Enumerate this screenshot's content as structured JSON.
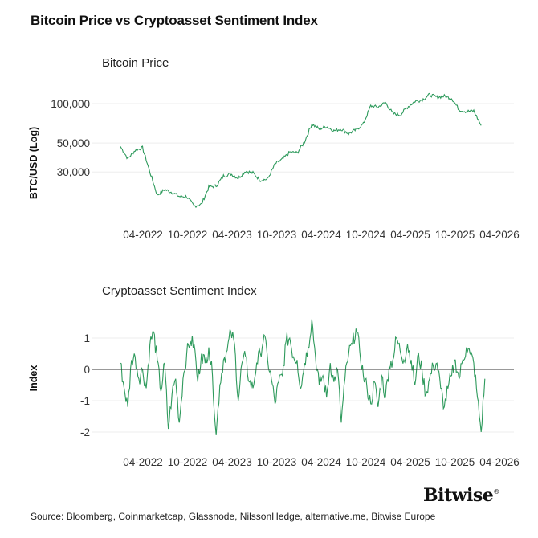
{
  "title": "Bitcoin Price vs Cryptoasset Sentiment Index",
  "source": "Source: Bloomberg, Coinmarketcap, Glassnode, NilssonHedge, alternative.me, Bitwise Europe",
  "logo": "Bitwise",
  "colors": {
    "line": "#2e9a5c",
    "zero_line": "#333333",
    "grid": "#eeeeee"
  },
  "chart_data": [
    {
      "type": "line",
      "title": "Bitcoin Price",
      "ylabel": "BTC/USD (Log)",
      "yscale": "log",
      "ylim": [
        14000,
        130000
      ],
      "yticks": [
        100000,
        50000,
        30000
      ],
      "ytick_labels": [
        "100,000",
        "50,000",
        "30,000"
      ],
      "xtick_labels": [
        "04-2022",
        "10-2022",
        "04-2023",
        "10-2023",
        "04-2024",
        "10-2024",
        "04-2025",
        "10-2025",
        "04-2026"
      ],
      "grid": true,
      "points": [
        [
          "2022-01",
          47000
        ],
        [
          "2022-02",
          38000
        ],
        [
          "2022-03",
          44000
        ],
        [
          "2022-04",
          46000
        ],
        [
          "2022-05",
          30000
        ],
        [
          "2022-06",
          20000
        ],
        [
          "2022-07",
          22000
        ],
        [
          "2022-08",
          21000
        ],
        [
          "2022-09",
          19500
        ],
        [
          "2022-10",
          19500
        ],
        [
          "2022-11",
          16500
        ],
        [
          "2022-12",
          17000
        ],
        [
          "2023-01",
          23000
        ],
        [
          "2023-02",
          23500
        ],
        [
          "2023-03",
          28000
        ],
        [
          "2023-04",
          29000
        ],
        [
          "2023-05",
          27000
        ],
        [
          "2023-06",
          30500
        ],
        [
          "2023-07",
          29500
        ],
        [
          "2023-08",
          26000
        ],
        [
          "2023-09",
          26500
        ],
        [
          "2023-10",
          34500
        ],
        [
          "2023-11",
          37500
        ],
        [
          "2023-12",
          42500
        ],
        [
          "2024-01",
          42000
        ],
        [
          "2024-02",
          51000
        ],
        [
          "2024-03",
          70000
        ],
        [
          "2024-04",
          64000
        ],
        [
          "2024-05",
          67000
        ],
        [
          "2024-06",
          62000
        ],
        [
          "2024-07",
          64000
        ],
        [
          "2024-08",
          59000
        ],
        [
          "2024-09",
          63000
        ],
        [
          "2024-10",
          70000
        ],
        [
          "2024-11",
          96000
        ],
        [
          "2024-12",
          94000
        ],
        [
          "2025-01",
          102000
        ],
        [
          "2025-02",
          84000
        ],
        [
          "2025-03",
          82000
        ],
        [
          "2025-04",
          94000
        ],
        [
          "2025-05",
          104000
        ],
        [
          "2025-06",
          107000
        ],
        [
          "2025-07",
          117000
        ],
        [
          "2025-08",
          112000
        ],
        [
          "2025-09",
          114000
        ],
        [
          "2025-10",
          110000
        ],
        [
          "2025-11",
          90000
        ],
        [
          "2025-12",
          87000
        ],
        [
          "2026-01",
          88000
        ],
        [
          "2026-02",
          68000
        ]
      ]
    },
    {
      "type": "line",
      "title": "Cryptoasset Sentiment Index",
      "ylabel": "Index",
      "ylim": [
        -2.2,
        1.7
      ],
      "yticks": [
        1,
        0,
        -1,
        -2
      ],
      "ytick_labels": [
        "1",
        "0",
        "-1",
        "-2"
      ],
      "xtick_labels": [
        "04-2022",
        "10-2022",
        "04-2023",
        "10-2023",
        "04-2024",
        "10-2024",
        "04-2025",
        "10-2025",
        "04-2026"
      ],
      "grid": true,
      "x_start": "2022-01",
      "x_end": "2026-02",
      "values": [
        0.2,
        -0.6,
        -1.2,
        0.3,
        0.4,
        -0.3,
        0,
        -0.6,
        0.8,
        1.2,
        0.3,
        -0.7,
        0.2,
        -1.9,
        -0.8,
        -0.3,
        -1.7,
        -0.3,
        0.5,
        0.9,
        0.8,
        -0.4,
        0.5,
        0.2,
        0.7,
        -0.2,
        -2.1,
        -0.5,
        0.3,
        0.6,
        1.2,
        0.8,
        -1.0,
        0.2,
        0.4,
        -0.4,
        -0.6,
        0.2,
        0.5,
        1.1,
        0.3,
        -0.3,
        -1.1,
        -0.4,
        -0.2,
        0.9,
        1.0,
        0.4,
        0.3,
        -0.6,
        0.2,
        0.7,
        1.6,
        0.4,
        -0.5,
        -0.2,
        -0.9,
        0.2,
        -0.4,
        0.0,
        -1.7,
        -0.3,
        0.5,
        0.8,
        1.3,
        0.6,
        -0.2,
        -0.6,
        -1.1,
        -0.4,
        -1.2,
        -0.2,
        -0.9,
        0.1,
        0.3,
        1.0,
        0.6,
        0.3,
        0.8,
        0.3,
        -0.5,
        0.5,
        -0.1,
        -0.8,
        -0.3,
        0.1,
        0.2,
        -0.6,
        -1.2,
        -0.6,
        -0.2,
        0.3,
        -0.3,
        0.3,
        0.7,
        0.5,
        0.2,
        -0.9,
        -2.0,
        -0.3
      ]
    }
  ]
}
